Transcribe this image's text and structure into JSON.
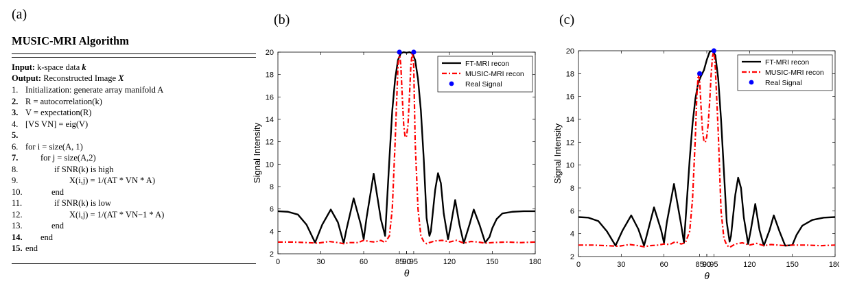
{
  "panels": {
    "a": "(a)",
    "b": "(b)",
    "c": "(c)"
  },
  "algorithm": {
    "title": "MUSIC-MRI Algorithm",
    "input_label": "Input:",
    "input_text": "k-space data",
    "input_var": "k",
    "output_label": "Output:",
    "output_text": "Reconstructed Image",
    "output_var": "X",
    "steps": [
      {
        "n": "1.",
        "bold": false,
        "text": "Initialization: generate array manifold A"
      },
      {
        "n": "2.",
        "bold": true,
        "text": "R = autocorrelation(k)"
      },
      {
        "n": "3.",
        "bold": true,
        "text": "V = expectation(R)"
      },
      {
        "n": "4.",
        "bold": false,
        "text": "[VS  VN] = eig(V)"
      },
      {
        "n": "5.",
        "bold": true,
        "text": ""
      },
      {
        "n": "6.",
        "bold": false,
        "text": "for i = size(A, 1)"
      },
      {
        "n": "7.",
        "bold": true,
        "text": "for j = size(A,2)"
      },
      {
        "n": "8.",
        "bold": false,
        "text": "if SNR(k) is high"
      },
      {
        "n": "9.",
        "bold": false,
        "text": "X(i,j) = 1/(AT * VN * A)"
      },
      {
        "n": "10.",
        "bold": false,
        "text": "end"
      },
      {
        "n": "11.",
        "bold": false,
        "text": "if SNR(k) is low"
      },
      {
        "n": "12.",
        "bold": false,
        "text": "X(i,j) = 1/(AT * VN−1 * A)"
      },
      {
        "n": "13.",
        "bold": false,
        "text": "end"
      },
      {
        "n": "14.",
        "bold": true,
        "text": "end"
      },
      {
        "n": "15.",
        "bold": true,
        "text": "end"
      }
    ]
  },
  "colors": {
    "ft": "#000000",
    "music": "#ff0000",
    "real": "#0000ff"
  },
  "chart_data": [
    {
      "panel": "(b)",
      "type": "line",
      "xlabel": "θ",
      "ylabel": "Signal Intensity",
      "xlim": [
        0,
        180
      ],
      "ylim": [
        2,
        20
      ],
      "xticks": [
        "0",
        "30",
        "60",
        "90",
        "120",
        "150",
        "180"
      ],
      "yticks": [
        "2",
        "4",
        "6",
        "8",
        "10",
        "12",
        "14",
        "16",
        "18",
        "20"
      ],
      "extra_xtick_labels": [
        "85",
        "90",
        "95"
      ],
      "legend": [
        "FT-MRI recon",
        "MUSIC-MRI recon",
        "Real Signal"
      ],
      "series": [
        {
          "name": "FT-MRI recon",
          "x": [
            0,
            7,
            14,
            20,
            26,
            31,
            37,
            42,
            46,
            48,
            53,
            58,
            60,
            62,
            67,
            72,
            75,
            78,
            80,
            82,
            84,
            86,
            88,
            90,
            92,
            94,
            96,
            98,
            100,
            102,
            104,
            106,
            107,
            110,
            112,
            114,
            116,
            119,
            121,
            124,
            127,
            130,
            134,
            137,
            141,
            145,
            148,
            150,
            153,
            157,
            164,
            172,
            180
          ],
          "y": [
            5.8,
            5.75,
            5.5,
            4.6,
            3.0,
            4.6,
            5.95,
            4.8,
            2.95,
            4.2,
            6.95,
            4.6,
            3.3,
            5.2,
            9.15,
            5.1,
            3.6,
            10.5,
            14.8,
            17.6,
            19.3,
            19.9,
            20.0,
            19.95,
            20.0,
            19.9,
            19.3,
            17.6,
            14.8,
            10.5,
            5.2,
            3.6,
            4.0,
            7.7,
            9.2,
            8.3,
            5.6,
            3.3,
            4.6,
            6.8,
            4.6,
            2.95,
            4.6,
            5.95,
            4.6,
            3.0,
            3.5,
            4.3,
            5.1,
            5.6,
            5.75,
            5.8,
            5.8
          ]
        },
        {
          "name": "MUSIC-MRI recon",
          "x": [
            0,
            10,
            20,
            28,
            36,
            42,
            46,
            50,
            56,
            60,
            64,
            68,
            72,
            75,
            78,
            80,
            82,
            84,
            85,
            86,
            87,
            88,
            89,
            90,
            91,
            92,
            93,
            94,
            95,
            96,
            98,
            100,
            102,
            104,
            106,
            110,
            115,
            120,
            125,
            130,
            135,
            140,
            145,
            150,
            160,
            170,
            180
          ],
          "y": [
            3.05,
            3.05,
            3.0,
            2.95,
            3.1,
            3.0,
            2.9,
            3.0,
            3.0,
            3.2,
            3.1,
            3.05,
            3.2,
            3.0,
            3.6,
            6.0,
            12.0,
            18.8,
            20.0,
            18.8,
            16.0,
            13.5,
            12.4,
            12.5,
            13.5,
            16.0,
            18.8,
            20.0,
            18.8,
            12.0,
            6.0,
            3.6,
            3.1,
            2.9,
            3.0,
            3.15,
            3.2,
            3.05,
            3.2,
            2.95,
            3.1,
            3.05,
            2.95,
            3.0,
            3.05,
            3.0,
            3.05
          ]
        },
        {
          "name": "Real Signal",
          "x": [
            85,
            95
          ],
          "y": [
            20,
            20
          ]
        }
      ]
    },
    {
      "panel": "(c)",
      "type": "line",
      "xlabel": "θ",
      "ylabel": "Signal Intensity",
      "xlim": [
        0,
        180
      ],
      "ylim": [
        2,
        20
      ],
      "xticks": [
        "0",
        "30",
        "60",
        "90",
        "120",
        "150",
        "180"
      ],
      "yticks": [
        "2",
        "4",
        "6",
        "8",
        "10",
        "12",
        "14",
        "16",
        "18",
        "20"
      ],
      "extra_xtick_labels": [
        "85",
        "90",
        "95"
      ],
      "legend": [
        "FT-MRI recon",
        "MUSIC-MRI recon",
        "Real Signal"
      ],
      "series": [
        {
          "name": "FT-MRI recon",
          "x": [
            0,
            7,
            14,
            20,
            26,
            31,
            37,
            42,
            46,
            48,
            53,
            58,
            60,
            62,
            67,
            72,
            74,
            76,
            78,
            80,
            82,
            84,
            86,
            88,
            90,
            92,
            94,
            96,
            98,
            100,
            102,
            104,
            106,
            107,
            110,
            112,
            114,
            116,
            119,
            121,
            124,
            127,
            130,
            134,
            137,
            141,
            145,
            150,
            153,
            157,
            164,
            172,
            180
          ],
          "y": [
            5.45,
            5.4,
            5.1,
            4.2,
            2.95,
            4.3,
            5.6,
            4.4,
            2.95,
            3.9,
            6.3,
            4.3,
            3.2,
            5.0,
            8.35,
            4.8,
            3.2,
            6.8,
            10.5,
            13.6,
            15.8,
            17.2,
            17.8,
            18.3,
            19.2,
            19.9,
            20.0,
            19.6,
            17.6,
            14.0,
            9.5,
            5.0,
            3.3,
            3.8,
            7.4,
            8.9,
            8.0,
            5.4,
            3.1,
            4.4,
            6.6,
            4.3,
            2.95,
            4.3,
            5.6,
            4.2,
            2.95,
            3.0,
            3.9,
            4.7,
            5.2,
            5.4,
            5.45
          ]
        },
        {
          "name": "MUSIC-MRI recon",
          "x": [
            0,
            10,
            20,
            28,
            36,
            42,
            46,
            50,
            56,
            60,
            64,
            68,
            72,
            75,
            78,
            80,
            82,
            83,
            84,
            85,
            86,
            87,
            88,
            89,
            90,
            91,
            92,
            93,
            94,
            95,
            96,
            98,
            100,
            102,
            104,
            106,
            110,
            115,
            120,
            125,
            130,
            135,
            140,
            145,
            150,
            160,
            170,
            180
          ],
          "y": [
            3.0,
            3.0,
            2.95,
            2.9,
            3.05,
            2.95,
            2.85,
            2.95,
            3.0,
            3.1,
            3.05,
            3.3,
            3.1,
            3.2,
            4.2,
            7.0,
            12.5,
            16.0,
            17.9,
            17.4,
            15.0,
            13.0,
            12.1,
            12.0,
            12.5,
            13.6,
            15.5,
            17.8,
            19.5,
            20.0,
            18.5,
            13.0,
            6.0,
            3.6,
            3.0,
            2.8,
            3.1,
            3.2,
            3.0,
            3.15,
            2.95,
            3.05,
            3.0,
            2.95,
            3.0,
            3.0,
            2.95,
            3.0
          ]
        },
        {
          "name": "Real Signal",
          "x": [
            85,
            95
          ],
          "y": [
            18,
            20
          ]
        }
      ]
    }
  ]
}
